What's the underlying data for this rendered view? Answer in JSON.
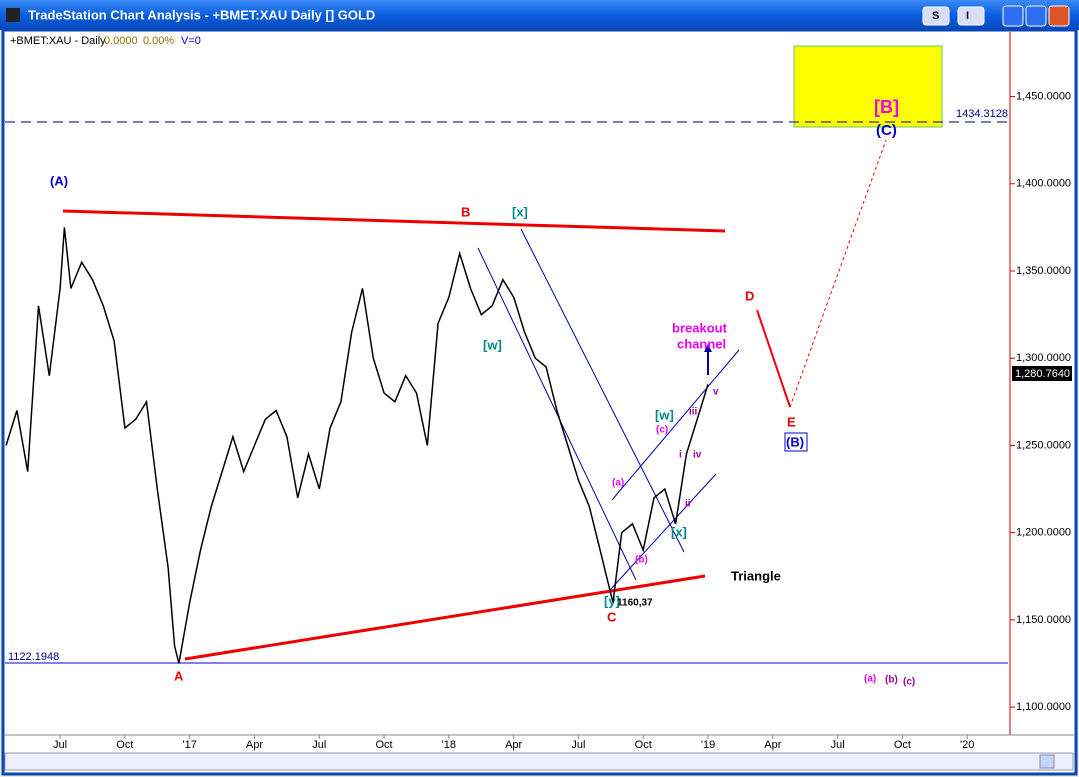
{
  "window": {
    "title": "TradeStation Chart Analysis - +BMET:XAU Daily [] GOLD",
    "buttons": [
      "S",
      "I"
    ]
  },
  "header": {
    "symbol": "+BMET:XAU - Daily",
    "change": "0.0000",
    "percent": "0.00%",
    "volume": "V=0"
  },
  "chart_data": {
    "type": "line",
    "series": [
      {
        "name": "+BMET:XAU",
        "color": "#000000",
        "x": [
          -2.5,
          -2,
          -1.5,
          -1,
          -0.5,
          0,
          0.2,
          0.5,
          1,
          1.5,
          2,
          2.5,
          3,
          3.5,
          4,
          4.5,
          5,
          5.3,
          5.5,
          6,
          6.5,
          7,
          7.5,
          8,
          8.5,
          9,
          9.5,
          10,
          10.5,
          11,
          11.5,
          12,
          12.5,
          13,
          13.5,
          14,
          14.5,
          15,
          15.5,
          16,
          16.5,
          17,
          17.5,
          18,
          18.5,
          19,
          19.5,
          20,
          20.5,
          21,
          21.5,
          22,
          22.5,
          23,
          23.5,
          24,
          24.5,
          25,
          25.3,
          25.6,
          26,
          26.5,
          27,
          27.5,
          28,
          28.5,
          29,
          29.5,
          30
        ],
        "values": [
          1250,
          1270,
          1235,
          1330,
          1290,
          1340,
          1375,
          1340,
          1355,
          1345,
          1330,
          1310,
          1260,
          1265,
          1275,
          1225,
          1180,
          1135,
          1125,
          1160,
          1190,
          1215,
          1235,
          1255,
          1235,
          1250,
          1265,
          1270,
          1255,
          1220,
          1245,
          1225,
          1260,
          1275,
          1315,
          1340,
          1300,
          1280,
          1275,
          1290,
          1280,
          1250,
          1320,
          1335,
          1360,
          1340,
          1325,
          1330,
          1345,
          1335,
          1315,
          1300,
          1295,
          1270,
          1250,
          1230,
          1215,
          1190,
          1175,
          1160,
          1200,
          1205,
          1190,
          1220,
          1225,
          1205,
          1245,
          1265,
          1285
        ]
      }
    ],
    "xlim": [
      -2.55,
      43.98
    ],
    "xticks": [
      {
        "value": 0,
        "label": "Jul"
      },
      {
        "value": 3,
        "label": "Oct"
      },
      {
        "value": 6,
        "label": "'17"
      },
      {
        "value": 9,
        "label": "Apr"
      },
      {
        "value": 12,
        "label": "Jul"
      },
      {
        "value": 15,
        "label": "Oct"
      },
      {
        "value": 18,
        "label": "'18"
      },
      {
        "value": 21,
        "label": "Apr"
      },
      {
        "value": 24,
        "label": "Jul"
      },
      {
        "value": 27,
        "label": "Oct"
      },
      {
        "value": 30,
        "label": "'19"
      },
      {
        "value": 33,
        "label": "Apr"
      },
      {
        "value": 36,
        "label": "Jul"
      },
      {
        "value": 39,
        "label": "Oct"
      },
      {
        "value": 42,
        "label": "'20"
      }
    ],
    "ylim": [
      1084,
      1487
    ],
    "yticks": [
      {
        "value": 1100,
        "label": "1,100.0000"
      },
      {
        "value": 1150,
        "label": "1,150.0000"
      },
      {
        "value": 1200,
        "label": "1,200.0000"
      },
      {
        "value": 1250,
        "label": "1,250.0000"
      },
      {
        "value": 1300,
        "label": "1,300.0000"
      },
      {
        "value": 1350,
        "label": "1,350.0000"
      },
      {
        "value": 1400,
        "label": "1,400.0000"
      },
      {
        "value": 1450,
        "label": "1,450.0000"
      }
    ],
    "price_labels": [
      "1434.3128",
      "1,280.7640",
      "1122.1948"
    ],
    "annotations": [
      "(A)",
      "A",
      "B",
      "[x]",
      "[w]",
      "C",
      "[y]",
      "1160,37",
      "Triangle",
      "breakout",
      "channel",
      "(a)",
      "(b)",
      "(c)",
      "[w]",
      "i",
      "ii",
      "iii",
      "iv",
      "v",
      "[x]",
      "D",
      "E",
      "(B)",
      "[B]",
      "(C)",
      "(a)",
      "(b)",
      "(c)"
    ]
  }
}
